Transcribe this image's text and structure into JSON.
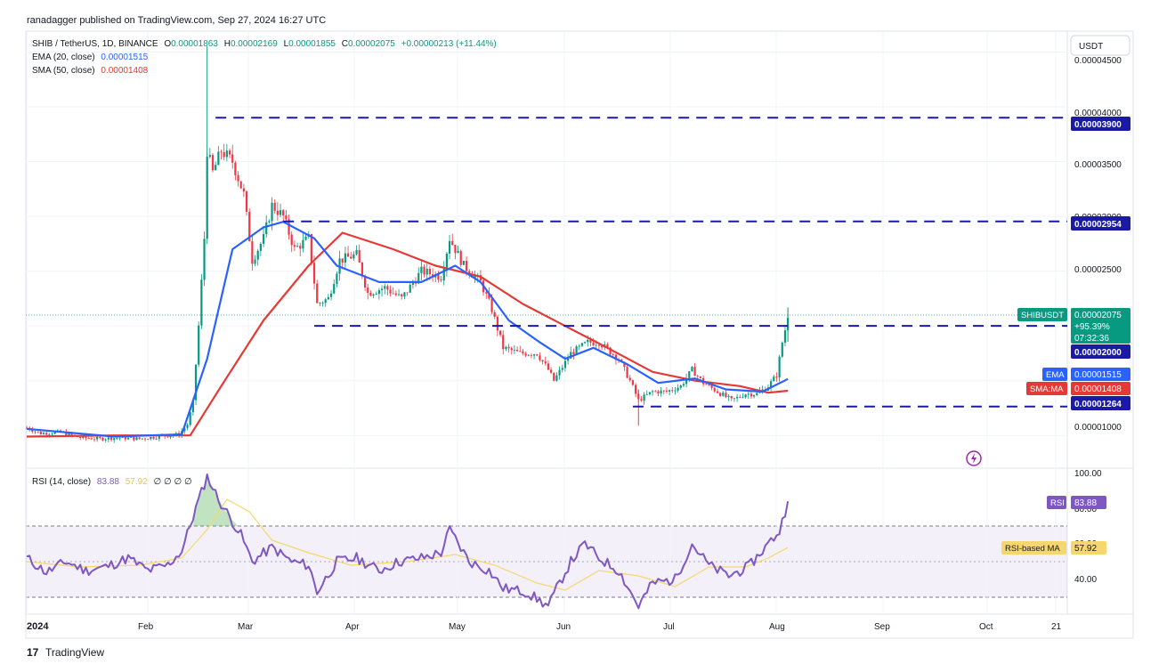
{
  "header": {
    "published_line": "ranadagger published on TradingView.com, Sep 27, 2024 16:27 UTC"
  },
  "footer": {
    "logo_text": "TradingView"
  },
  "currency_button": "USDT",
  "legend": {
    "symbol": "SHIB / TetherUS, 1D, BINANCE",
    "open_label": "O",
    "open": "0.00001863",
    "high_label": "H",
    "high": "0.00002169",
    "low_label": "L",
    "low": "0.00001855",
    "close_label": "C",
    "close": "0.00002075",
    "change": "+0.00000213 (+11.44%)",
    "ema_label": "EMA (20, close)",
    "ema_value": "0.00001515",
    "sma_label": "SMA (50, close)",
    "sma_value": "0.00001408"
  },
  "rsi_legend": {
    "label": "RSI (14, close)",
    "rsi_value": "83.88",
    "ma_value": "57.92",
    "extras": "∅ ∅ ∅ ∅"
  },
  "price_scale": {
    "ticks": [
      "0.00004500",
      "0.00004000",
      "0.00003500",
      "0.00003000",
      "0.00002500",
      "0.00001000"
    ]
  },
  "price_tags": {
    "level_3900": "0.00003900",
    "level_2954": "0.00002954",
    "symbol_label": "SHIBUSDT",
    "last_price": "0.00002075",
    "change_pct": "+95.39%",
    "countdown": "07:32:36",
    "level_2000": "0.00002000",
    "ema_label": "EMA",
    "ema_value": "0.00001515",
    "sma_label": "SMA:MA",
    "sma_value": "0.00001408",
    "level_1264": "0.00001264"
  },
  "rsi_scale": {
    "ticks": [
      "100.00",
      "80.00",
      "60.00",
      "40.00"
    ],
    "rsi_tag_label": "RSI",
    "rsi_tag_value": "83.88",
    "ma_tag_label": "RSI-based MA",
    "ma_tag_value": "57.92"
  },
  "time_axis": {
    "labels": [
      "2024",
      "Feb",
      "Mar",
      "Apr",
      "May",
      "Jun",
      "Jul",
      "Aug",
      "Sep",
      "Oct",
      "21"
    ]
  },
  "colors": {
    "ema": "#2962ff",
    "sma": "#e53935",
    "up": "#089981",
    "down": "#f23645",
    "hline": "#1a1aa6",
    "rsi": "#7e57c2",
    "rsi_ma": "#f5d76e",
    "grid": "#f0f3fa"
  },
  "chart_data": [
    {
      "type": "candlestick",
      "title": "SHIB / TetherUS, 1D, BINANCE",
      "ylim": [
        7.5e-06,
        4.65e-05
      ],
      "x": [
        "2024-01-01",
        "2024-12-31"
      ],
      "horizontal_levels": [
        3.9e-05,
        2.954e-05,
        2e-05,
        1.264e-05
      ],
      "price_path": [
        [
          "2024-01-01",
          1.07e-05
        ],
        [
          "2024-01-06",
          1.02e-05
        ],
        [
          "2024-01-13",
          1.03e-05
        ],
        [
          "2024-01-20",
          9.8e-06
        ],
        [
          "2024-01-27",
          9.7e-06
        ],
        [
          "2024-02-03",
          9.8e-06
        ],
        [
          "2024-02-10",
          9.7e-06
        ],
        [
          "2024-02-17",
          9.9e-06
        ],
        [
          "2024-02-24",
          1.01e-05
        ],
        [
          "2024-02-27",
          1.1e-05
        ],
        [
          "2024-02-29",
          1.3e-05
        ],
        [
          "2024-03-02",
          2e-05
        ],
        [
          "2024-03-04",
          2.8e-05
        ],
        [
          "2024-03-05",
          3.6e-05
        ],
        [
          "2024-03-07",
          3.4e-05
        ],
        [
          "2024-03-10",
          3.6e-05
        ],
        [
          "2024-03-14",
          3.5e-05
        ],
        [
          "2024-03-18",
          3.2e-05
        ],
        [
          "2024-03-21",
          2.6e-05
        ],
        [
          "2024-03-25",
          2.8e-05
        ],
        [
          "2024-03-28",
          3.1e-05
        ],
        [
          "2024-04-01",
          3e-05
        ],
        [
          "2024-04-05",
          2.7e-05
        ],
        [
          "2024-04-10",
          2.8e-05
        ],
        [
          "2024-04-13",
          2.2e-05
        ],
        [
          "2024-04-17",
          2.25e-05
        ],
        [
          "2024-04-21",
          2.6e-05
        ],
        [
          "2024-04-27",
          2.65e-05
        ],
        [
          "2024-05-01",
          2.3e-05
        ],
        [
          "2024-05-07",
          2.35e-05
        ],
        [
          "2024-05-13",
          2.25e-05
        ],
        [
          "2024-05-20",
          2.5e-05
        ],
        [
          "2024-05-27",
          2.45e-05
        ],
        [
          "2024-05-30",
          2.8e-05
        ],
        [
          "2024-06-04",
          2.55e-05
        ],
        [
          "2024-06-10",
          2.4e-05
        ],
        [
          "2024-06-14",
          2.15e-05
        ],
        [
          "2024-06-18",
          1.8e-05
        ],
        [
          "2024-06-24",
          1.75e-05
        ],
        [
          "2024-06-30",
          1.75e-05
        ],
        [
          "2024-07-04",
          1.6e-05
        ],
        [
          "2024-07-06",
          1.5e-05
        ],
        [
          "2024-07-12",
          1.75e-05
        ],
        [
          "2024-07-18",
          1.85e-05
        ],
        [
          "2024-07-22",
          1.85e-05
        ],
        [
          "2024-07-29",
          1.7e-05
        ],
        [
          "2024-08-02",
          1.5e-05
        ],
        [
          "2024-08-05",
          1.32e-05
        ],
        [
          "2024-08-10",
          1.4e-05
        ],
        [
          "2024-08-15",
          1.4e-05
        ],
        [
          "2024-08-20",
          1.45e-05
        ],
        [
          "2024-08-24",
          1.6e-05
        ],
        [
          "2024-08-28",
          1.48e-05
        ],
        [
          "2024-09-02",
          1.4e-05
        ],
        [
          "2024-09-07",
          1.32e-05
        ],
        [
          "2024-09-12",
          1.38e-05
        ],
        [
          "2024-09-16",
          1.38e-05
        ],
        [
          "2024-09-20",
          1.45e-05
        ],
        [
          "2024-09-23",
          1.55e-05
        ],
        [
          "2024-09-25",
          1.85e-05
        ],
        [
          "2024-09-27",
          2.08e-05
        ]
      ],
      "ema_path": [
        [
          "2024-01-01",
          1.06e-05
        ],
        [
          "2024-02-01",
          9.9e-06
        ],
        [
          "2024-02-25",
          1.01e-05
        ],
        [
          "2024-03-05",
          1.7e-05
        ],
        [
          "2024-03-14",
          2.7e-05
        ],
        [
          "2024-03-25",
          2.9e-05
        ],
        [
          "2024-04-01",
          2.95e-05
        ],
        [
          "2024-04-12",
          2.8e-05
        ],
        [
          "2024-04-20",
          2.55e-05
        ],
        [
          "2024-05-05",
          2.4e-05
        ],
        [
          "2024-05-20",
          2.4e-05
        ],
        [
          "2024-06-01",
          2.55e-05
        ],
        [
          "2024-06-10",
          2.4e-05
        ],
        [
          "2024-06-20",
          2.05e-05
        ],
        [
          "2024-07-01",
          1.85e-05
        ],
        [
          "2024-07-10",
          1.7e-05
        ],
        [
          "2024-07-20",
          1.8e-05
        ],
        [
          "2024-08-01",
          1.65e-05
        ],
        [
          "2024-08-12",
          1.48e-05
        ],
        [
          "2024-08-25",
          1.52e-05
        ],
        [
          "2024-09-05",
          1.42e-05
        ],
        [
          "2024-09-18",
          1.4e-05
        ],
        [
          "2024-09-27",
          1.515e-05
        ]
      ],
      "sma_path": [
        [
          "2024-01-01",
          9.9e-06
        ],
        [
          "2024-02-01",
          1e-05
        ],
        [
          "2024-02-28",
          1e-05
        ],
        [
          "2024-03-10",
          1.45e-05
        ],
        [
          "2024-03-25",
          2.05e-05
        ],
        [
          "2024-04-10",
          2.55e-05
        ],
        [
          "2024-04-22",
          2.85e-05
        ],
        [
          "2024-05-10",
          2.7e-05
        ],
        [
          "2024-05-25",
          2.55e-05
        ],
        [
          "2024-06-10",
          2.45e-05
        ],
        [
          "2024-06-25",
          2.2e-05
        ],
        [
          "2024-07-10",
          2e-05
        ],
        [
          "2024-07-25",
          1.8e-05
        ],
        [
          "2024-08-10",
          1.58e-05
        ],
        [
          "2024-08-25",
          1.5e-05
        ],
        [
          "2024-09-10",
          1.45e-05
        ],
        [
          "2024-09-20",
          1.39e-05
        ],
        [
          "2024-09-27",
          1.408e-05
        ]
      ]
    },
    {
      "type": "line",
      "title": "RSI (14, close)",
      "ylim": [
        20,
        100
      ],
      "levels": [
        70,
        50,
        30
      ],
      "series": [
        {
          "name": "RSI",
          "points": [
            [
              "2024-01-01",
              52
            ],
            [
              "2024-01-08",
              44
            ],
            [
              "2024-01-15",
              50
            ],
            [
              "2024-01-22",
              45
            ],
            [
              "2024-01-29",
              47
            ],
            [
              "2024-02-06",
              52
            ],
            [
              "2024-02-13",
              45
            ],
            [
              "2024-02-20",
              48
            ],
            [
              "2024-02-25",
              56
            ],
            [
              "2024-03-01",
              80
            ],
            [
              "2024-03-05",
              98
            ],
            [
              "2024-03-09",
              85
            ],
            [
              "2024-03-13",
              75
            ],
            [
              "2024-03-17",
              65
            ],
            [
              "2024-03-21",
              50
            ],
            [
              "2024-03-28",
              58
            ],
            [
              "2024-04-04",
              50
            ],
            [
              "2024-04-10",
              48
            ],
            [
              "2024-04-13",
              33
            ],
            [
              "2024-04-20",
              50
            ],
            [
              "2024-04-27",
              52
            ],
            [
              "2024-05-05",
              45
            ],
            [
              "2024-05-12",
              50
            ],
            [
              "2024-05-20",
              52
            ],
            [
              "2024-05-27",
              55
            ],
            [
              "2024-05-30",
              68
            ],
            [
              "2024-06-06",
              50
            ],
            [
              "2024-06-13",
              45
            ],
            [
              "2024-06-18",
              35
            ],
            [
              "2024-06-26",
              33
            ],
            [
              "2024-07-04",
              25
            ],
            [
              "2024-07-08",
              38
            ],
            [
              "2024-07-12",
              50
            ],
            [
              "2024-07-17",
              60
            ],
            [
              "2024-07-22",
              52
            ],
            [
              "2024-07-29",
              45
            ],
            [
              "2024-08-05",
              25
            ],
            [
              "2024-08-10",
              38
            ],
            [
              "2024-08-18",
              40
            ],
            [
              "2024-08-24",
              60
            ],
            [
              "2024-08-30",
              48
            ],
            [
              "2024-09-06",
              42
            ],
            [
              "2024-09-13",
              47
            ],
            [
              "2024-09-20",
              60
            ],
            [
              "2024-09-24",
              67
            ],
            [
              "2024-09-27",
              83.88
            ]
          ]
        },
        {
          "name": "RSI-based MA",
          "points": [
            [
              "2024-01-01",
              50
            ],
            [
              "2024-01-20",
              47
            ],
            [
              "2024-02-10",
              48
            ],
            [
              "2024-02-25",
              52
            ],
            [
              "2024-03-05",
              68
            ],
            [
              "2024-03-12",
              85
            ],
            [
              "2024-03-20",
              78
            ],
            [
              "2024-03-28",
              62
            ],
            [
              "2024-04-10",
              55
            ],
            [
              "2024-04-25",
              48
            ],
            [
              "2024-05-15",
              50
            ],
            [
              "2024-06-01",
              54
            ],
            [
              "2024-06-15",
              48
            ],
            [
              "2024-06-30",
              38
            ],
            [
              "2024-07-10",
              34
            ],
            [
              "2024-07-22",
              45
            ],
            [
              "2024-08-05",
              42
            ],
            [
              "2024-08-18",
              36
            ],
            [
              "2024-08-30",
              47
            ],
            [
              "2024-09-12",
              47
            ],
            [
              "2024-09-20",
              52
            ],
            [
              "2024-09-27",
              57.92
            ]
          ]
        }
      ]
    }
  ]
}
